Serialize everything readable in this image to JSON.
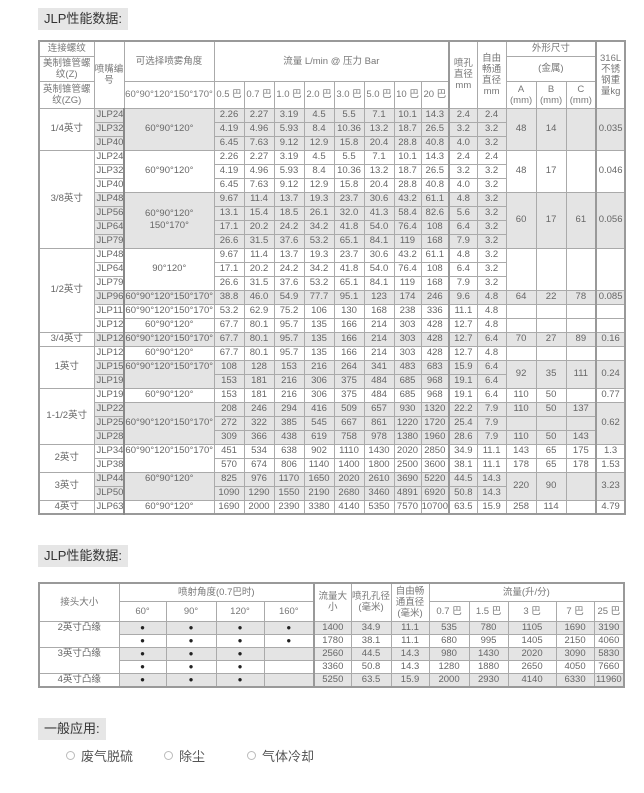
{
  "section1_title": "JLP性能数据:",
  "table1": {
    "headers": {
      "thread": "连接螺纹",
      "thread_z": "美制锥管螺纹(Z)",
      "thread_zg": "英制锥管螺纹(ZG)",
      "model": "喷嘴编号",
      "angle": "可选择喷雾角度",
      "angle_all": "60°90°120°150°170°",
      "flow": "流量 L/min @ 压力 Bar",
      "pressures": [
        "0.5 巴",
        "0.7 巴",
        "1.0 巴",
        "2.0 巴",
        "3.0 巴",
        "5.0 巴",
        "10 巴",
        "20 巴"
      ],
      "orifice": "喷孔直径 mm",
      "free": "自由畅通直径 mm",
      "dims": "外形尺寸",
      "metal": "(金属)",
      "dim_cols": [
        "A (mm)",
        "B (mm)",
        "C (mm)"
      ],
      "weight": "316L不锈钢重量kg"
    },
    "groups": [
      {
        "thread": "1/4英寸",
        "rows": [
          {
            "model": "JLP24",
            "shaded": true,
            "angle": "60°90°120°",
            "angle_span": 3,
            "flow": [
              "2.26",
              "2.27",
              "3.19",
              "4.5",
              "5.5",
              "7.1",
              "10.1",
              "14.3"
            ],
            "orifice": "2.4",
            "free": "2.4",
            "dims": [
              "48",
              "14",
              ""
            ],
            "dims_span": 3,
            "weight": "0.035",
            "weight_span": 3
          },
          {
            "model": "JLP32",
            "shaded": true,
            "flow": [
              "4.19",
              "4.96",
              "5.93",
              "8.4",
              "10.36",
              "13.2",
              "18.7",
              "26.5"
            ],
            "orifice": "3.2",
            "free": "3.2"
          },
          {
            "model": "JLP40",
            "shaded": true,
            "flow": [
              "6.45",
              "7.63",
              "9.12",
              "12.9",
              "15.8",
              "20.4",
              "28.8",
              "40.8"
            ],
            "orifice": "4.0",
            "free": "3.2"
          }
        ]
      },
      {
        "thread": "3/8英寸",
        "rows": [
          {
            "model": "JLP24",
            "angle": "60°90°120°",
            "angle_span": 3,
            "flow": [
              "2.26",
              "2.27",
              "3.19",
              "4.5",
              "5.5",
              "7.1",
              "10.1",
              "14.3"
            ],
            "orifice": "2.4",
            "free": "2.4",
            "dims": [
              "48",
              "17",
              ""
            ],
            "dims_span": 3,
            "weight": "0.046",
            "weight_span": 3
          },
          {
            "model": "JLP32",
            "flow": [
              "4.19",
              "4.96",
              "5.93",
              "8.4",
              "10.36",
              "13.2",
              "18.7",
              "26.5"
            ],
            "orifice": "3.2",
            "free": "3.2"
          },
          {
            "model": "JLP40",
            "flow": [
              "6.45",
              "7.63",
              "9.12",
              "12.9",
              "15.8",
              "20.4",
              "28.8",
              "40.8"
            ],
            "orifice": "4.0",
            "free": "3.2"
          },
          {
            "model": "JLP48",
            "shaded": true,
            "angle": "60°90°120° 150°170°",
            "angle_span": 4,
            "flow": [
              "9.67",
              "11.4",
              "13.7",
              "19.3",
              "23.7",
              "30.6",
              "43.2",
              "61.1"
            ],
            "orifice": "4.8",
            "free": "3.2",
            "dims": [
              "60",
              "17",
              "61"
            ],
            "dims_span": 4,
            "weight": "0.056",
            "weight_span": 4
          },
          {
            "model": "JLP56",
            "shaded": true,
            "flow": [
              "13.1",
              "15.4",
              "18.5",
              "26.1",
              "32.0",
              "41.3",
              "58.4",
              "82.6"
            ],
            "orifice": "5.6",
            "free": "3.2"
          },
          {
            "model": "JLP64",
            "shaded": true,
            "flow": [
              "17.1",
              "20.2",
              "24.2",
              "34.2",
              "41.8",
              "54.0",
              "76.4",
              "108"
            ],
            "orifice": "6.4",
            "free": "3.2"
          },
          {
            "model": "JLP79",
            "shaded": true,
            "flow": [
              "26.6",
              "31.5",
              "37.6",
              "53.2",
              "65.1",
              "84.1",
              "119",
              "168"
            ],
            "orifice": "7.9",
            "free": "3.2"
          }
        ]
      },
      {
        "thread": "1/2英寸",
        "rows": [
          {
            "model": "JLP48",
            "angle": "90°120°",
            "angle_span": 3,
            "flow": [
              "9.67",
              "11.4",
              "13.7",
              "19.3",
              "23.7",
              "30.6",
              "43.2",
              "61.1"
            ],
            "orifice": "4.8",
            "free": "3.2",
            "dims": [
              "",
              "",
              ""
            ],
            "dims_span": 3,
            "weight": "",
            "weight_span": 3
          },
          {
            "model": "JLP64",
            "flow": [
              "17.1",
              "20.2",
              "24.2",
              "34.2",
              "41.8",
              "54.0",
              "76.4",
              "108"
            ],
            "orifice": "6.4",
            "free": "3.2"
          },
          {
            "model": "JLP79",
            "flow": [
              "26.6",
              "31.5",
              "37.6",
              "53.2",
              "65.1",
              "84.1",
              "119",
              "168"
            ],
            "orifice": "7.9",
            "free": "3.2"
          },
          {
            "model": "JLP96",
            "shaded": true,
            "angle": "60°90°120°150°170°",
            "flow": [
              "38.8",
              "46.0",
              "54.9",
              "77.7",
              "95.1",
              "123",
              "174",
              "246"
            ],
            "orifice": "9.6",
            "free": "4.8",
            "dims": [
              "64",
              "22",
              "78"
            ],
            "weight": "0.085"
          },
          {
            "model": "JLP111",
            "angle": "60°90°120°150°170°",
            "flow": [
              "53.2",
              "62.9",
              "75.2",
              "106",
              "130",
              "168",
              "238",
              "336"
            ],
            "orifice": "11.1",
            "free": "4.8",
            "dims": [
              "",
              "",
              ""
            ],
            "weight": ""
          },
          {
            "model": "JLP127",
            "angle": "60°90°120°",
            "flow": [
              "67.7",
              "80.1",
              "95.7",
              "135",
              "166",
              "214",
              "303",
              "428"
            ],
            "orifice": "12.7",
            "free": "4.8",
            "dims": [
              "",
              "",
              ""
            ],
            "weight": ""
          }
        ]
      },
      {
        "thread": "3/4英寸",
        "rows": [
          {
            "model": "JLP127",
            "shaded": true,
            "angle": "60°90°120°150°170°",
            "flow": [
              "67.7",
              "80.1",
              "95.7",
              "135",
              "166",
              "214",
              "303",
              "428"
            ],
            "orifice": "12.7",
            "free": "6.4",
            "dims": [
              "70",
              "27",
              "89"
            ],
            "weight": "0.16"
          }
        ]
      },
      {
        "thread": "1英寸",
        "rows": [
          {
            "model": "JLP127",
            "angle": "60°90°120°",
            "flow": [
              "67.7",
              "80.1",
              "95.7",
              "135",
              "166",
              "214",
              "303",
              "428"
            ],
            "orifice": "12.7",
            "free": "4.8",
            "dims": [
              "",
              "",
              ""
            ],
            "weight": ""
          },
          {
            "model": "JLP159",
            "shaded": true,
            "angle": "60°90°120°150°170°",
            "angle_span": 2,
            "flow": [
              "108",
              "128",
              "153",
              "216",
              "264",
              "341",
              "483",
              "683"
            ],
            "orifice": "15.9",
            "free": "6.4",
            "dims": [
              "92",
              "35",
              "111"
            ],
            "dims_span": 2,
            "weight": "0.24",
            "weight_span": 2
          },
          {
            "model": "JLP191",
            "shaded": true,
            "flow": [
              "153",
              "181",
              "216",
              "306",
              "375",
              "484",
              "685",
              "968"
            ],
            "orifice": "19.1",
            "free": "6.4"
          }
        ]
      },
      {
        "thread": "1-1/2英寸",
        "rows": [
          {
            "model": "JLP191",
            "angle": "60°90°120°",
            "flow": [
              "153",
              "181",
              "216",
              "306",
              "375",
              "484",
              "685",
              "968"
            ],
            "orifice": "19.1",
            "free": "6.4",
            "dims": [
              "110",
              "50",
              ""
            ],
            "weight": "0.77"
          },
          {
            "model": "JLP222",
            "shaded": true,
            "angle": "60°90°120°150°170°",
            "angle_span": 3,
            "flow": [
              "208",
              "246",
              "294",
              "416",
              "509",
              "657",
              "930",
              "1320"
            ],
            "orifice": "22.2",
            "free": "7.9",
            "dims": [
              "110",
              "50",
              "137"
            ],
            "weight": "0.62",
            "weight_span": 3
          },
          {
            "model": "JLP254",
            "shaded": true,
            "flow": [
              "272",
              "322",
              "385",
              "545",
              "667",
              "861",
              "1220",
              "1720"
            ],
            "orifice": "25.4",
            "free": "7.9",
            "dims": [
              "",
              "",
              ""
            ]
          },
          {
            "model": "JLP286",
            "shaded": true,
            "flow": [
              "309",
              "366",
              "438",
              "619",
              "758",
              "978",
              "1380",
              "1960"
            ],
            "orifice": "28.6",
            "free": "7.9",
            "dims": [
              "110",
              "50",
              "143"
            ]
          }
        ]
      },
      {
        "thread": "2英寸",
        "rows": [
          {
            "model": "JLP349",
            "angle": "60°90°120°150°170°",
            "angle_span": 2,
            "flow": [
              "451",
              "534",
              "638",
              "902",
              "1110",
              "1430",
              "2020",
              "2850"
            ],
            "orifice": "34.9",
            "free": "11.1",
            "dims": [
              "143",
              "65",
              "175"
            ],
            "weight": "1.3"
          },
          {
            "model": "JLP381",
            "flow": [
              "570",
              "674",
              "806",
              "1140",
              "1400",
              "1800",
              "2500",
              "3600"
            ],
            "orifice": "38.1",
            "free": "11.1",
            "dims": [
              "178",
              "65",
              "178"
            ],
            "weight": "1.53"
          }
        ]
      },
      {
        "thread": "3英寸",
        "rows": [
          {
            "model": "JLP445",
            "shaded": true,
            "angle": "60°90°120°",
            "angle_span": 2,
            "flow": [
              "825",
              "976",
              "1170",
              "1650",
              "2020",
              "2610",
              "3690",
              "5220"
            ],
            "orifice": "44.5",
            "free": "14.3",
            "dims": [
              "220",
              "90",
              ""
            ],
            "dims_span": 2,
            "weight": "3.23",
            "weight_span": 2
          },
          {
            "model": "JLP508",
            "shaded": true,
            "flow": [
              "1090",
              "1290",
              "1550",
              "2190",
              "2680",
              "3460",
              "4891",
              "6920"
            ],
            "orifice": "50.8",
            "free": "14.3"
          }
        ]
      },
      {
        "thread": "4英寸",
        "rows": [
          {
            "model": "JLP635",
            "angle": "60°90°120°",
            "flow": [
              "1690",
              "2000",
              "2390",
              "3380",
              "4140",
              "5350",
              "7570",
              "10700"
            ],
            "orifice": "63.5",
            "free": "15.9",
            "dims": [
              "258",
              "114",
              ""
            ],
            "weight": "4.79"
          }
        ]
      }
    ]
  },
  "section2_title": "JLP性能数据:",
  "table2": {
    "headers": {
      "size": "接头大小",
      "angle": "喷射角度(0.7巴时)",
      "angles": [
        "60°",
        "90°",
        "120°",
        "160°"
      ],
      "flow_size": "流量大小",
      "orifice": "喷孔孔径(毫米)",
      "free": "自由畅通直径(毫米)",
      "flow": "流量(升/分)",
      "pressures": [
        "0.7 巴",
        "1.5 巴",
        "3 巴",
        "7 巴",
        "25 巴"
      ]
    },
    "rows": [
      {
        "size": "2英寸凸缘",
        "size_span": 2,
        "shaded": true,
        "angles": [
          true,
          true,
          true,
          true
        ],
        "flow_size": "1400",
        "orifice": "34.9",
        "free": "11.1",
        "flows": [
          "535",
          "780",
          "1105",
          "1690",
          "3190"
        ]
      },
      {
        "angles": [
          true,
          true,
          true,
          true
        ],
        "flow_size": "1780",
        "orifice": "38.1",
        "free": "11.1",
        "flows": [
          "680",
          "995",
          "1405",
          "2150",
          "4060"
        ]
      },
      {
        "size": "3英寸凸缘",
        "size_span": 2,
        "shaded": true,
        "angles": [
          true,
          true,
          true,
          false
        ],
        "flow_size": "2560",
        "orifice": "44.5",
        "free": "14.3",
        "flows": [
          "980",
          "1430",
          "2020",
          "3090",
          "5830"
        ]
      },
      {
        "angles": [
          true,
          true,
          true,
          false
        ],
        "flow_size": "3360",
        "orifice": "50.8",
        "free": "14.3",
        "flows": [
          "1280",
          "1880",
          "2650",
          "4050",
          "7660"
        ]
      },
      {
        "size": "4英寸凸缘",
        "shaded": true,
        "angles": [
          true,
          true,
          true,
          false
        ],
        "flow_size": "5250",
        "orifice": "63.5",
        "free": "15.9",
        "flows": [
          "2000",
          "2930",
          "4140",
          "6330",
          "11960"
        ]
      }
    ]
  },
  "applications": {
    "title": "一般应用:",
    "items": [
      "废气脱硫",
      "除尘",
      "气体冷却"
    ]
  }
}
